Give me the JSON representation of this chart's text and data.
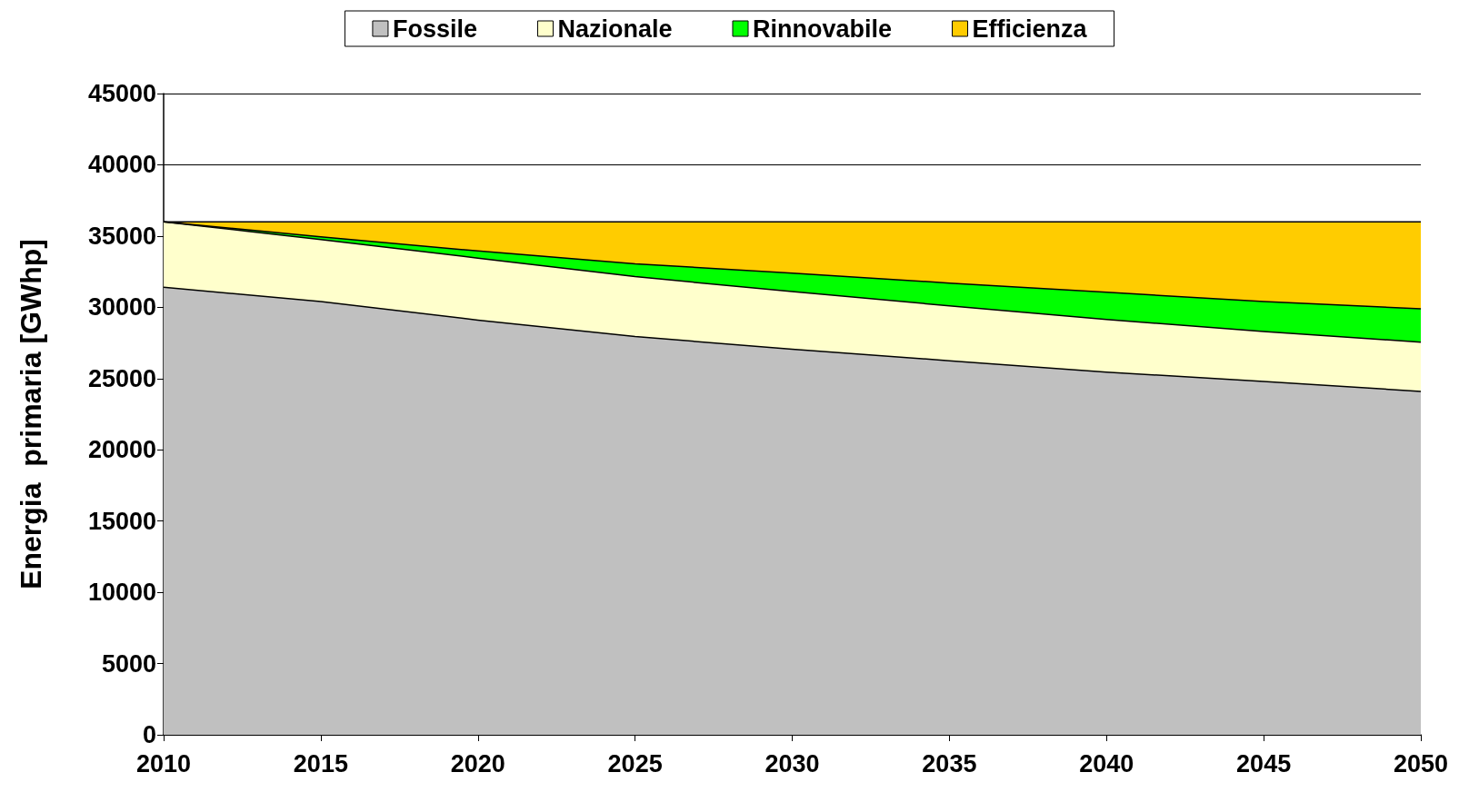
{
  "chart_data": {
    "type": "area",
    "stacked": true,
    "ylabel": "Energia  primaria [GWhp]",
    "categories": [
      "2010",
      "2015",
      "2020",
      "2025",
      "2030",
      "2035",
      "2040",
      "2045",
      "2050"
    ],
    "series": [
      {
        "name": "Fossile",
        "color": "#c0c0c0",
        "values": [
          31400,
          30400,
          29100,
          27950,
          27050,
          26250,
          25450,
          24800,
          24100
        ]
      },
      {
        "name": "Nazionale",
        "color": "#ffffcc",
        "values": [
          4600,
          4350,
          4350,
          4200,
          4050,
          3850,
          3700,
          3500,
          3450
        ]
      },
      {
        "name": "Rinnovabile",
        "color": "#00ff00",
        "values": [
          0,
          200,
          500,
          900,
          1300,
          1600,
          1900,
          2100,
          2350
        ]
      },
      {
        "name": "Efficienza",
        "color": "#ffcc00",
        "values": [
          0,
          1050,
          2050,
          2950,
          3600,
          4300,
          4950,
          5600,
          6100
        ]
      }
    ],
    "ylim": [
      0,
      45000
    ],
    "yticks": [
      0,
      5000,
      10000,
      15000,
      20000,
      25000,
      30000,
      35000,
      40000,
      45000
    ],
    "grid": "y",
    "legend": "top",
    "marker": "none",
    "line_style": "solid"
  }
}
